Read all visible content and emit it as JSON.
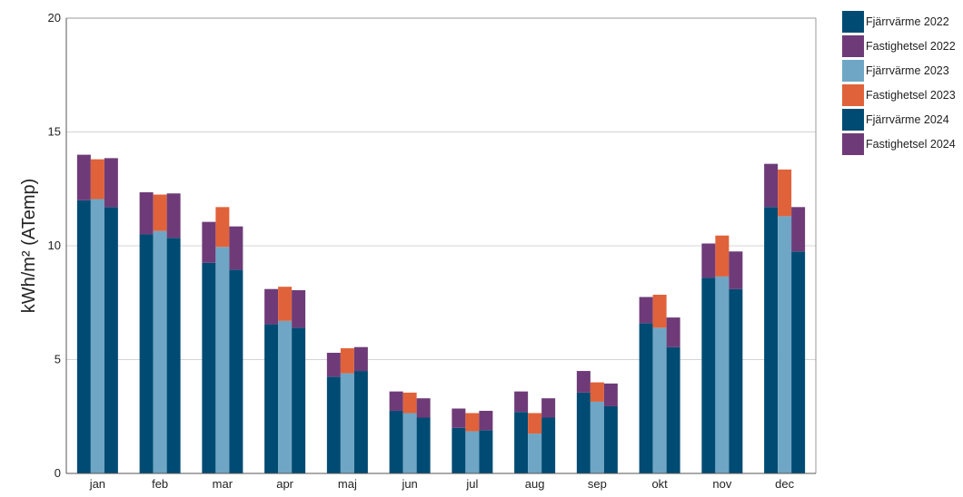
{
  "chart_data": {
    "type": "bar",
    "stacked": true,
    "grouped": true,
    "ylabel": "kWh/m² (ATemp)",
    "ylim": [
      0,
      20
    ],
    "yticks": [
      0,
      5,
      10,
      15,
      20
    ],
    "grid": true,
    "legend_position": "right",
    "categories": [
      "jan",
      "feb",
      "mar",
      "apr",
      "maj",
      "jun",
      "jul",
      "aug",
      "sep",
      "okt",
      "nov",
      "dec"
    ],
    "groups": [
      {
        "year": "2022",
        "series": [
          {
            "name": "Fjärrvärme 2022",
            "color": "#004b73",
            "values": [
              12.0,
              10.5,
              9.25,
              6.55,
              4.25,
              2.75,
              2.0,
              2.7,
              3.55,
              6.6,
              8.6,
              11.7
            ]
          },
          {
            "name": "Fastighetsel 2022",
            "color": "#6e3b78",
            "values": [
              2.0,
              1.85,
              1.8,
              1.55,
              1.05,
              0.85,
              0.85,
              0.9,
              0.95,
              1.15,
              1.5,
              1.9
            ]
          }
        ]
      },
      {
        "year": "2023",
        "series": [
          {
            "name": "Fjärrvärme 2023",
            "color": "#6fa6c5",
            "values": [
              12.05,
              10.65,
              9.95,
              6.7,
              4.4,
              2.65,
              1.85,
              1.75,
              3.15,
              6.4,
              8.65,
              11.3
            ]
          },
          {
            "name": "Fastighetsel 2023",
            "color": "#e0623a",
            "values": [
              1.75,
              1.6,
              1.75,
              1.5,
              1.1,
              0.9,
              0.8,
              0.9,
              0.85,
              1.45,
              1.8,
              2.05
            ]
          }
        ]
      },
      {
        "year": "2024",
        "series": [
          {
            "name": "Fjärrvärme 2024",
            "color": "#004b73",
            "values": [
              11.7,
              10.35,
              8.95,
              6.4,
              4.5,
              2.45,
              1.9,
              2.45,
              2.95,
              5.55,
              8.1,
              9.75
            ]
          },
          {
            "name": "Fastighetsel 2024",
            "color": "#6e3b78",
            "values": [
              2.15,
              1.95,
              1.9,
              1.65,
              1.05,
              0.85,
              0.85,
              0.85,
              1.0,
              1.3,
              1.65,
              1.95
            ]
          }
        ]
      }
    ]
  }
}
